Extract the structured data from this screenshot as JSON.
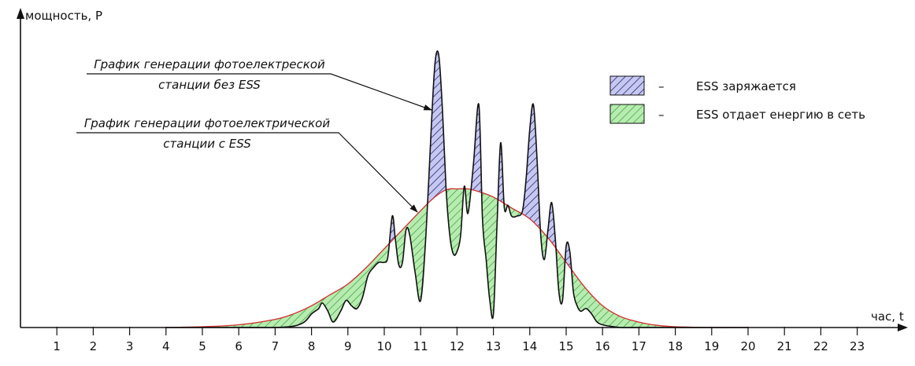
{
  "chart_data": {
    "type": "area",
    "xlabel": "час, t",
    "ylabel": "мощность, P",
    "xlim": [
      0,
      24
    ],
    "ylim": [
      0,
      1
    ],
    "ticks": [
      "1",
      "2",
      "3",
      "4",
      "5",
      "6",
      "7",
      "8",
      "9",
      "10",
      "11",
      "12",
      "13",
      "14",
      "15",
      "16",
      "17",
      "18",
      "19",
      "20",
      "21",
      "22",
      "23"
    ],
    "series": [
      {
        "name": "График генерации фотоелектреской станции без ESS",
        "x": [
          4.0,
          5.0,
          6.0,
          7.0,
          7.5,
          7.8,
          8.0,
          8.1,
          8.2,
          8.3,
          8.45,
          8.6,
          8.8,
          8.95,
          9.1,
          9.25,
          9.4,
          9.55,
          9.7,
          9.85,
          10.0,
          10.1,
          10.22,
          10.3,
          10.4,
          10.5,
          10.6,
          10.7,
          10.85,
          11.0,
          11.15,
          11.3,
          11.4,
          11.5,
          11.6,
          11.7,
          11.8,
          11.9,
          12.0,
          12.1,
          12.2,
          12.3,
          12.45,
          12.6,
          12.7,
          12.8,
          12.9,
          13.0,
          13.1,
          13.2,
          13.3,
          13.4,
          13.5,
          13.65,
          13.8,
          13.9,
          14.0,
          14.1,
          14.2,
          14.3,
          14.4,
          14.5,
          14.6,
          14.7,
          14.8,
          14.9,
          15.0,
          15.1,
          15.2,
          15.3,
          15.4,
          15.55,
          15.7,
          15.85,
          16.0,
          16.2,
          16.5,
          17.0,
          17.5,
          18.0,
          19.0,
          20.0
        ],
        "values": [
          0.0,
          0.0,
          0.0,
          0.0,
          0.005,
          0.02,
          0.05,
          0.06,
          0.07,
          0.09,
          0.06,
          0.02,
          0.06,
          0.1,
          0.08,
          0.07,
          0.11,
          0.19,
          0.22,
          0.24,
          0.24,
          0.26,
          0.41,
          0.33,
          0.23,
          0.24,
          0.36,
          0.34,
          0.2,
          0.1,
          0.35,
          0.76,
          0.98,
          1.0,
          0.8,
          0.51,
          0.34,
          0.27,
          0.28,
          0.34,
          0.52,
          0.42,
          0.6,
          0.82,
          0.4,
          0.25,
          0.1,
          0.05,
          0.38,
          0.68,
          0.44,
          0.45,
          0.41,
          0.41,
          0.43,
          0.55,
          0.73,
          0.82,
          0.62,
          0.34,
          0.25,
          0.36,
          0.46,
          0.33,
          0.13,
          0.1,
          0.3,
          0.28,
          0.13,
          0.08,
          0.06,
          0.07,
          0.05,
          0.02,
          0.01,
          0.005,
          0.0,
          0.0,
          0.0,
          0.0,
          0.0,
          0.0
        ]
      },
      {
        "name": "График генерации фотоелектрической станции с ESS",
        "x": [
          4.0,
          5.0,
          6.0,
          7.0,
          7.5,
          8.0,
          8.5,
          9.0,
          9.5,
          10.0,
          10.5,
          11.0,
          11.3,
          11.6,
          11.8,
          12.0,
          12.3,
          12.6,
          13.0,
          13.5,
          14.0,
          14.5,
          15.0,
          15.5,
          16.0,
          16.5,
          17.0,
          17.5,
          18.0,
          19.0,
          20.0
        ],
        "values": [
          0.0,
          0.003,
          0.01,
          0.03,
          0.05,
          0.08,
          0.12,
          0.16,
          0.22,
          0.29,
          0.36,
          0.43,
          0.47,
          0.5,
          0.51,
          0.51,
          0.51,
          0.5,
          0.48,
          0.44,
          0.4,
          0.33,
          0.24,
          0.15,
          0.08,
          0.04,
          0.02,
          0.008,
          0.003,
          0.0,
          0.0
        ],
        "color": "#d42a2a"
      }
    ],
    "legend": {
      "position": "top-right",
      "items": [
        {
          "symbol": "–",
          "label": "ESS заряжается",
          "fill": "#c6c8f2",
          "hatch": "#2a2a70"
        },
        {
          "symbol": "–",
          "label": "ESS отдает енергию в сеть",
          "fill": "#b7ecb0",
          "hatch": "#3a9a3a"
        }
      ]
    },
    "annotations": [
      {
        "lines": [
          "График генерации фотоелектреской",
          "станции без ESS"
        ],
        "target_series": 0
      },
      {
        "lines": [
          "График генерации фотоелектрической",
          "станции  с  ESS"
        ],
        "target_series": 1
      }
    ]
  }
}
